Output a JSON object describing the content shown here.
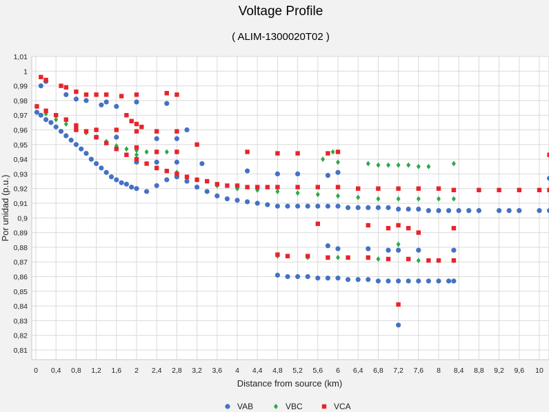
{
  "chart_data": {
    "type": "scatter",
    "title": "Voltage Profile",
    "subtitle": "( ALIM-1300020T02 )",
    "xlabel": "Distance from source (km)",
    "ylabel": "Por unidad (p.u.)",
    "xlim": [
      0,
      10.2
    ],
    "ylim": [
      0.81,
      1.01
    ],
    "x_ticks": [
      "0",
      "0,4",
      "0,8",
      "1,2",
      "1,6",
      "2",
      "2,4",
      "2,8",
      "3,2",
      "3,6",
      "4",
      "4,4",
      "4,8",
      "5,2",
      "5,6",
      "6",
      "6,4",
      "6,8",
      "7,2",
      "7,6",
      "8",
      "8,4",
      "8,8",
      "9,2",
      "9,6",
      "10"
    ],
    "y_ticks": [
      "1,01",
      "1",
      "0,99",
      "0,98",
      "0,97",
      "0,96",
      "0,95",
      "0,94",
      "0,93",
      "0,92",
      "0,91",
      "0,9",
      "0,89",
      "0,88",
      "0,87",
      "0,86",
      "0,85",
      "0,84",
      "0,83",
      "0,82",
      "0,81"
    ],
    "grid": true,
    "legend_position": "bottom",
    "series": [
      {
        "name": "VAB",
        "color": "#4472c4",
        "marker": "circle",
        "points": [
          [
            0.02,
            0.972
          ],
          [
            0.1,
            0.97
          ],
          [
            0.2,
            0.967
          ],
          [
            0.3,
            0.965
          ],
          [
            0.4,
            0.962
          ],
          [
            0.5,
            0.959
          ],
          [
            0.6,
            0.956
          ],
          [
            0.7,
            0.953
          ],
          [
            0.8,
            0.95
          ],
          [
            0.9,
            0.947
          ],
          [
            1.0,
            0.944
          ],
          [
            1.1,
            0.94
          ],
          [
            1.2,
            0.937
          ],
          [
            1.3,
            0.934
          ],
          [
            1.4,
            0.931
          ],
          [
            1.5,
            0.928
          ],
          [
            1.6,
            0.926
          ],
          [
            1.7,
            0.924
          ],
          [
            1.8,
            0.923
          ],
          [
            1.9,
            0.921
          ],
          [
            2.0,
            0.92
          ],
          [
            2.2,
            0.918
          ],
          [
            2.4,
            0.922
          ],
          [
            2.6,
            0.926
          ],
          [
            2.8,
            0.928
          ],
          [
            3.0,
            0.925
          ],
          [
            3.2,
            0.921
          ],
          [
            3.4,
            0.918
          ],
          [
            3.6,
            0.915
          ],
          [
            3.8,
            0.913
          ],
          [
            4.0,
            0.912
          ],
          [
            4.2,
            0.911
          ],
          [
            4.4,
            0.91
          ],
          [
            4.6,
            0.909
          ],
          [
            4.8,
            0.908
          ],
          [
            5.0,
            0.908
          ],
          [
            5.2,
            0.908
          ],
          [
            5.4,
            0.908
          ],
          [
            5.6,
            0.908
          ],
          [
            5.8,
            0.908
          ],
          [
            6.0,
            0.908
          ],
          [
            6.2,
            0.907
          ],
          [
            6.4,
            0.907
          ],
          [
            6.6,
            0.907
          ],
          [
            6.8,
            0.907
          ],
          [
            7.0,
            0.907
          ],
          [
            7.2,
            0.906
          ],
          [
            7.4,
            0.906
          ],
          [
            7.6,
            0.906
          ],
          [
            7.8,
            0.905
          ],
          [
            8.0,
            0.905
          ],
          [
            8.2,
            0.905
          ],
          [
            8.4,
            0.905
          ],
          [
            8.6,
            0.905
          ],
          [
            8.8,
            0.905
          ],
          [
            9.2,
            0.905
          ],
          [
            9.4,
            0.905
          ],
          [
            9.6,
            0.905
          ],
          [
            10.0,
            0.905
          ],
          [
            10.2,
            0.905
          ],
          [
            0.1,
            0.99
          ],
          [
            0.2,
            0.993
          ],
          [
            0.6,
            0.984
          ],
          [
            0.8,
            0.981
          ],
          [
            1.0,
            0.98
          ],
          [
            1.3,
            0.977
          ],
          [
            1.4,
            0.979
          ],
          [
            1.6,
            0.976
          ],
          [
            2.0,
            0.979
          ],
          [
            2.6,
            0.978
          ],
          [
            3.0,
            0.96
          ],
          [
            3.3,
            0.937
          ],
          [
            4.2,
            0.932
          ],
          [
            4.8,
            0.93
          ],
          [
            5.2,
            0.93
          ],
          [
            5.8,
            0.929
          ],
          [
            6.0,
            0.931
          ],
          [
            10.2,
            0.927
          ],
          [
            2.4,
            0.954
          ],
          [
            1.2,
            0.955
          ],
          [
            1.6,
            0.955
          ],
          [
            2.8,
            0.954
          ],
          [
            2.0,
            0.938
          ],
          [
            2.4,
            0.938
          ],
          [
            2.8,
            0.938
          ],
          [
            4.8,
            0.861
          ],
          [
            5.0,
            0.86
          ],
          [
            5.2,
            0.86
          ],
          [
            5.4,
            0.86
          ],
          [
            5.6,
            0.859
          ],
          [
            5.8,
            0.859
          ],
          [
            6.0,
            0.859
          ],
          [
            6.2,
            0.858
          ],
          [
            6.4,
            0.858
          ],
          [
            6.6,
            0.858
          ],
          [
            6.8,
            0.857
          ],
          [
            7.0,
            0.857
          ],
          [
            7.2,
            0.857
          ],
          [
            7.4,
            0.857
          ],
          [
            7.6,
            0.857
          ],
          [
            7.8,
            0.857
          ],
          [
            8.0,
            0.857
          ],
          [
            8.2,
            0.857
          ],
          [
            8.3,
            0.857
          ],
          [
            5.8,
            0.881
          ],
          [
            6.0,
            0.879
          ],
          [
            6.6,
            0.879
          ],
          [
            7.0,
            0.878
          ],
          [
            7.2,
            0.878
          ],
          [
            7.6,
            0.878
          ],
          [
            8.3,
            0.878
          ],
          [
            7.2,
            0.827
          ]
        ]
      },
      {
        "name": "VBC",
        "color": "#2ea84a",
        "marker": "diamond",
        "points": [
          [
            0.02,
            0.976
          ],
          [
            0.2,
            0.971
          ],
          [
            0.4,
            0.967
          ],
          [
            0.6,
            0.964
          ],
          [
            0.8,
            0.961
          ],
          [
            1.0,
            0.958
          ],
          [
            1.2,
            0.955
          ],
          [
            1.4,
            0.952
          ],
          [
            1.6,
            0.949
          ],
          [
            1.8,
            0.947
          ],
          [
            2.0,
            0.946
          ],
          [
            2.2,
            0.945
          ],
          [
            2.4,
            0.945
          ],
          [
            2.6,
            0.945
          ],
          [
            2.8,
            0.945
          ],
          [
            2.0,
            0.943
          ],
          [
            2.4,
            0.934
          ],
          [
            2.8,
            0.931
          ],
          [
            3.2,
            0.926
          ],
          [
            3.6,
            0.922
          ],
          [
            4.0,
            0.92
          ],
          [
            4.4,
            0.919
          ],
          [
            4.8,
            0.918
          ],
          [
            5.2,
            0.917
          ],
          [
            5.6,
            0.916
          ],
          [
            6.0,
            0.915
          ],
          [
            6.4,
            0.914
          ],
          [
            6.8,
            0.913
          ],
          [
            7.2,
            0.913
          ],
          [
            7.6,
            0.913
          ],
          [
            8.0,
            0.913
          ],
          [
            8.3,
            0.913
          ],
          [
            5.7,
            0.94
          ],
          [
            5.9,
            0.945
          ],
          [
            6.0,
            0.938
          ],
          [
            6.6,
            0.937
          ],
          [
            6.8,
            0.936
          ],
          [
            7.0,
            0.936
          ],
          [
            7.2,
            0.936
          ],
          [
            7.4,
            0.936
          ],
          [
            7.6,
            0.935
          ],
          [
            7.8,
            0.935
          ],
          [
            8.3,
            0.937
          ],
          [
            7.2,
            0.882
          ],
          [
            4.8,
            0.874
          ],
          [
            5.4,
            0.873
          ],
          [
            6.0,
            0.873
          ],
          [
            6.8,
            0.872
          ],
          [
            7.6,
            0.871
          ],
          [
            8.3,
            0.871
          ]
        ]
      },
      {
        "name": "VCA",
        "color": "#e8242c",
        "marker": "square",
        "points": [
          [
            0.02,
            0.976
          ],
          [
            0.2,
            0.973
          ],
          [
            0.4,
            0.97
          ],
          [
            0.6,
            0.967
          ],
          [
            0.8,
            0.963
          ],
          [
            1.0,
            0.959
          ],
          [
            1.2,
            0.955
          ],
          [
            1.4,
            0.951
          ],
          [
            1.6,
            0.947
          ],
          [
            1.8,
            0.943
          ],
          [
            2.0,
            0.94
          ],
          [
            2.2,
            0.937
          ],
          [
            2.4,
            0.934
          ],
          [
            2.6,
            0.932
          ],
          [
            2.8,
            0.93
          ],
          [
            3.0,
            0.928
          ],
          [
            3.2,
            0.926
          ],
          [
            3.4,
            0.925
          ],
          [
            3.6,
            0.923
          ],
          [
            3.8,
            0.922
          ],
          [
            4.0,
            0.922
          ],
          [
            4.2,
            0.921
          ],
          [
            4.4,
            0.921
          ],
          [
            4.6,
            0.921
          ],
          [
            4.8,
            0.921
          ],
          [
            5.2,
            0.921
          ],
          [
            5.6,
            0.921
          ],
          [
            6.0,
            0.921
          ],
          [
            6.4,
            0.92
          ],
          [
            6.8,
            0.92
          ],
          [
            7.2,
            0.92
          ],
          [
            7.6,
            0.92
          ],
          [
            8.0,
            0.92
          ],
          [
            8.3,
            0.919
          ],
          [
            8.8,
            0.919
          ],
          [
            9.2,
            0.919
          ],
          [
            9.6,
            0.919
          ],
          [
            10.0,
            0.919
          ],
          [
            10.2,
            0.919
          ],
          [
            0.8,
            0.96
          ],
          [
            1.2,
            0.96
          ],
          [
            1.6,
            0.96
          ],
          [
            2.0,
            0.959
          ],
          [
            2.4,
            0.959
          ],
          [
            2.8,
            0.959
          ],
          [
            1.8,
            0.97
          ],
          [
            1.9,
            0.966
          ],
          [
            2.0,
            0.964
          ],
          [
            2.1,
            0.962
          ],
          [
            0.1,
            0.996
          ],
          [
            0.2,
            0.994
          ],
          [
            0.5,
            0.99
          ],
          [
            0.6,
            0.989
          ],
          [
            0.8,
            0.986
          ],
          [
            1.0,
            0.984
          ],
          [
            1.2,
            0.984
          ],
          [
            1.4,
            0.984
          ],
          [
            1.7,
            0.983
          ],
          [
            2.0,
            0.984
          ],
          [
            2.6,
            0.985
          ],
          [
            2.8,
            0.984
          ],
          [
            2.0,
            0.948
          ],
          [
            2.4,
            0.945
          ],
          [
            2.8,
            0.945
          ],
          [
            3.2,
            0.95
          ],
          [
            4.2,
            0.945
          ],
          [
            4.8,
            0.944
          ],
          [
            5.2,
            0.944
          ],
          [
            5.8,
            0.944
          ],
          [
            6.0,
            0.945
          ],
          [
            10.2,
            0.943
          ],
          [
            4.8,
            0.875
          ],
          [
            5.0,
            0.874
          ],
          [
            5.4,
            0.874
          ],
          [
            5.8,
            0.873
          ],
          [
            6.2,
            0.873
          ],
          [
            6.6,
            0.873
          ],
          [
            7.0,
            0.872
          ],
          [
            7.4,
            0.872
          ],
          [
            7.8,
            0.871
          ],
          [
            8.0,
            0.871
          ],
          [
            8.3,
            0.871
          ],
          [
            5.6,
            0.896
          ],
          [
            6.6,
            0.895
          ],
          [
            7.0,
            0.893
          ],
          [
            7.2,
            0.895
          ],
          [
            7.4,
            0.893
          ],
          [
            7.6,
            0.89
          ],
          [
            8.3,
            0.893
          ],
          [
            7.2,
            0.841
          ]
        ]
      }
    ]
  }
}
